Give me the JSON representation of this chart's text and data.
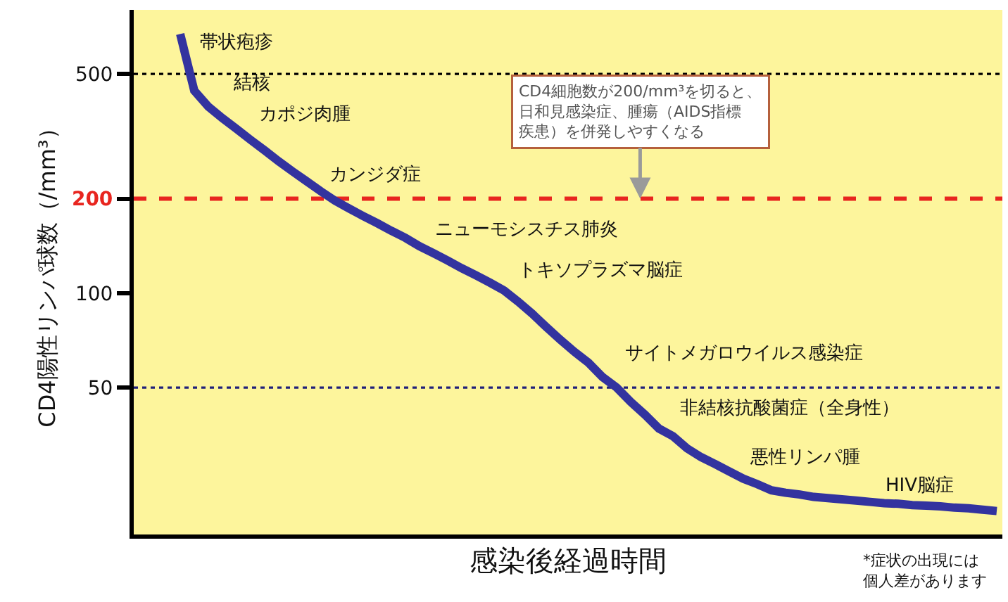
{
  "chart_data": {
    "type": "line",
    "xlabel": "感染後経過時間",
    "ylabel": "CD4陽性リンパ球数（/mm³）",
    "categories": [
      null,
      null,
      null,
      null,
      null,
      null,
      null,
      null,
      null,
      null,
      null,
      null,
      null,
      null,
      null,
      null,
      null,
      null,
      null,
      null,
      null,
      null,
      null,
      null,
      null,
      null,
      null,
      null,
      null,
      null,
      null,
      null,
      null,
      null,
      null,
      null,
      null,
      null,
      null,
      null,
      null,
      null,
      null,
      null,
      null,
      null,
      null,
      null,
      null,
      null,
      null,
      null,
      null,
      null,
      null,
      null,
      null,
      null,
      null
    ],
    "series": [
      {
        "color": "#33339f",
        "values": [
          670,
          442,
          393,
          361,
          334,
          308,
          285,
          263,
          244,
          227,
          211,
          197,
          186,
          176,
          167,
          158,
          150,
          141,
          134,
          127,
          120,
          114,
          108,
          102,
          94,
          86,
          78,
          71,
          65,
          60,
          54,
          50,
          45,
          41,
          37,
          35,
          32,
          30,
          28.5,
          27,
          25.6,
          24.6,
          23.5,
          23.1,
          22.8,
          22.4,
          22.2,
          22,
          21.8,
          21.6,
          21.4,
          21.3,
          21.1,
          21,
          20.9,
          20.7,
          20.6,
          20.4,
          20.2
        ]
      }
    ],
    "log": "y",
    "ylim": [
      17,
      800
    ],
    "yticks": [
      50,
      100,
      200,
      500
    ],
    "tick_labels": "y",
    "ref_lines": [
      {
        "axis": "y",
        "value": 500,
        "color": "#000000",
        "line_style": "dotted"
      },
      {
        "axis": "y",
        "value": 200,
        "color": "#e8251f",
        "line_style": "dashed",
        "label": "CD4細胞数が200/mm³を切ると、日和見感染症、腫瘍（AIDS指標疾患）を併発しやすくなる"
      },
      {
        "axis": "y",
        "value": 50,
        "color": "#20207a",
        "line_style": "dotted"
      }
    ],
    "annotations": [
      "帯状疱疹",
      "結核",
      "カポジ肉腫",
      "カンジダ症",
      "ニューモシスチス肺炎",
      "トキソプラズマ脳症",
      "サイトメガロウイルス感染症",
      "非結核抗酸菌症（全身性）",
      "悪性リンパ腫",
      "HIV脳症",
      "*症状の出現には個人差があります"
    ]
  }
}
